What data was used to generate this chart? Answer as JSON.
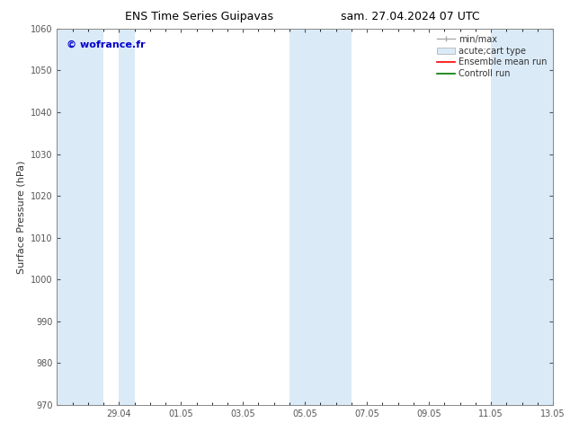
{
  "title_left": "ENS Time Series Guipavas",
  "title_right": "sam. 27.04.2024 07 UTC",
  "ylabel": "Surface Pressure (hPa)",
  "watermark": "© wofrance.fr",
  "watermark_color": "#0000cc",
  "ylim": [
    970,
    1060
  ],
  "yticks": [
    970,
    980,
    990,
    1000,
    1010,
    1020,
    1030,
    1040,
    1050,
    1060
  ],
  "x_min": 0,
  "x_max": 16,
  "xtick_labels": [
    "29.04",
    "01.05",
    "03.05",
    "05.05",
    "07.05",
    "09.05",
    "11.05",
    "13.05"
  ],
  "xtick_positions": [
    2,
    4,
    6,
    8,
    10,
    12,
    14,
    16
  ],
  "shaded_regions": [
    {
      "start": 0.0,
      "end": 1.5
    },
    {
      "start": 2.0,
      "end": 2.5
    },
    {
      "start": 7.5,
      "end": 9.5
    },
    {
      "start": 14.0,
      "end": 16.0
    }
  ],
  "shade_color": "#daeaf7",
  "background_color": "#ffffff",
  "tick_color": "#555555",
  "spine_color": "#888888",
  "legend_items": [
    {
      "label": "min/max",
      "type": "errorbar",
      "color": "#aaaaaa"
    },
    {
      "label": "acute;cart type",
      "type": "fill",
      "color": "#daeaf7"
    },
    {
      "label": "Ensemble mean run",
      "type": "line",
      "color": "#ff0000"
    },
    {
      "label": "Controll run",
      "type": "line",
      "color": "#007700"
    }
  ],
  "title_fontsize": 9,
  "ylabel_fontsize": 8,
  "tick_fontsize": 7,
  "watermark_fontsize": 8,
  "legend_fontsize": 7
}
